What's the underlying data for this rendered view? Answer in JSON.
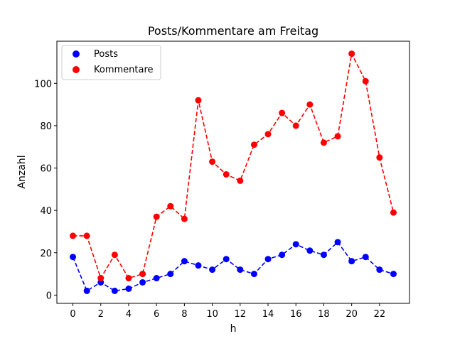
{
  "chart_data": {
    "type": "line",
    "title": "Posts/Kommentare am Freitag",
    "xlabel": "h",
    "ylabel": "Anzahl",
    "x": [
      0,
      1,
      2,
      3,
      4,
      5,
      6,
      7,
      8,
      9,
      10,
      11,
      12,
      13,
      14,
      15,
      16,
      17,
      18,
      19,
      20,
      21,
      22,
      23
    ],
    "xticks": [
      "0",
      "2",
      "4",
      "6",
      "8",
      "10",
      "12",
      "14",
      "16",
      "18",
      "20",
      "22"
    ],
    "yticks": [
      "0",
      "20",
      "40",
      "60",
      "80",
      "100"
    ],
    "xlim": [
      -1.15,
      24.15
    ],
    "ylim": [
      -3.9,
      119.9
    ],
    "series": [
      {
        "name": "Posts",
        "color": "#0000ff",
        "values": [
          18,
          2,
          6,
          2,
          3,
          6,
          8,
          10,
          16,
          14,
          12,
          17,
          12,
          10,
          17,
          19,
          24,
          21,
          19,
          25,
          16,
          18,
          12,
          10
        ]
      },
      {
        "name": "Kommentare",
        "color": "#ff0000",
        "values": [
          28,
          28,
          8,
          19,
          8,
          10,
          37,
          42,
          36,
          92,
          63,
          57,
          54,
          71,
          76,
          86,
          80,
          90,
          72,
          75,
          114,
          101,
          65,
          39
        ]
      }
    ],
    "grid": false,
    "legend": "top-left"
  }
}
